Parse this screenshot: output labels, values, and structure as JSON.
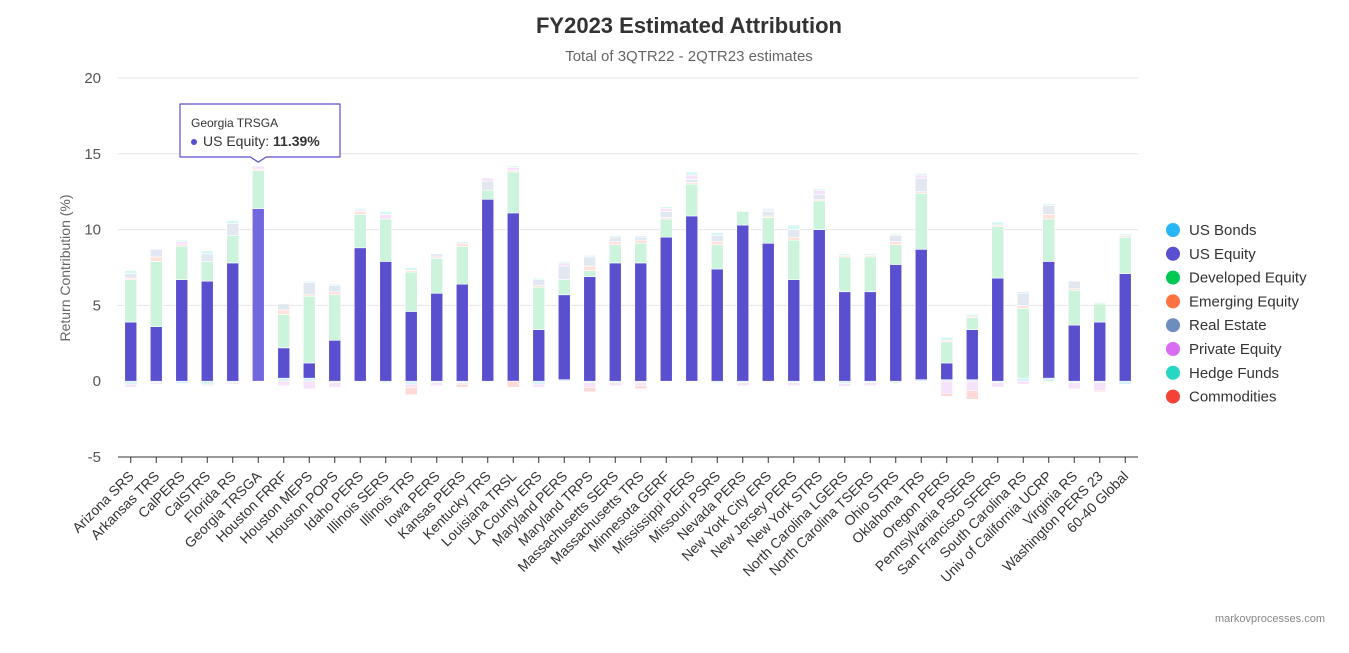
{
  "chart_data": {
    "type": "bar",
    "stacked": true,
    "title": "FY2023 Estimated Attribution",
    "subtitle": "Total of 3QTR22 - 2QTR23 estimates",
    "ylabel": "Return Contribution (%)",
    "xlabel": "",
    "ylim": [
      -5,
      20
    ],
    "yticks": [
      -5,
      0,
      5,
      10,
      15,
      20
    ],
    "grid": true,
    "legend_position": "right",
    "credit": "markovprocesses.com",
    "categories": [
      "Arizona SRS",
      "Arkansas TRS",
      "CalPERS",
      "CalSTRS",
      "Florida RS",
      "Georgia TRSGA",
      "Houston FRRF",
      "Houston MEPS",
      "Houston POPS",
      "Idaho PERS",
      "Illinois SERS",
      "Illinois TRS",
      "Iowa PERS",
      "Kansas PERS",
      "Kentucky TRS",
      "Louisiana TRSL",
      "LA County ERS",
      "Maryland PERS",
      "Maryland TRPS",
      "Massachusetts SERS",
      "Massachusetts TRS",
      "Minnesota GERF",
      "Mississippi PERS",
      "Missouri PSRS",
      "Nevada PERS",
      "New York City ERS",
      "New Jersey PERS",
      "New York STRS",
      "North Carolina LGERS",
      "North Carolina TSERS",
      "Ohio STRS",
      "Oklahoma TRS",
      "Oregon PERS",
      "Pennsylvania PSERS",
      "San Francisco SFERS",
      "South Carolina RS",
      "Univ of California UCRP",
      "Virginia RS",
      "Washington PERS 23",
      "60-40 Global"
    ],
    "series": [
      {
        "name": "US Bonds",
        "color": "#29b6f6",
        "values": [
          -0.2,
          -0.1,
          -0.15,
          -0.2,
          -0.1,
          0,
          0.2,
          0.2,
          -0.1,
          0,
          -0.1,
          -0.2,
          -0.1,
          -0.1,
          0,
          0,
          -0.2,
          0.1,
          -0.1,
          -0.1,
          -0.1,
          0,
          0,
          -0.1,
          -0.1,
          0,
          -0.1,
          -0.1,
          -0.15,
          -0.1,
          -0.1,
          0.1,
          0.1,
          0.1,
          -0.1,
          0.2,
          0.2,
          -0.1,
          -0.1,
          -0.2
        ]
      },
      {
        "name": "US Equity",
        "color": "#5a4fcf",
        "values": [
          3.9,
          3.6,
          6.7,
          6.6,
          7.8,
          11.39,
          2.0,
          1.0,
          2.7,
          8.8,
          7.9,
          4.6,
          5.8,
          6.4,
          12.0,
          11.1,
          3.4,
          5.6,
          6.9,
          7.8,
          7.8,
          9.5,
          10.9,
          7.4,
          10.3,
          9.1,
          6.7,
          10.0,
          5.9,
          5.9,
          7.7,
          8.6,
          1.1,
          3.3,
          6.8,
          0,
          7.7,
          3.7,
          3.9,
          7.1
        ]
      },
      {
        "name": "Developed Equity",
        "color": "#00c853",
        "values": [
          2.8,
          4.3,
          2.2,
          1.3,
          1.8,
          2.5,
          2.2,
          4.4,
          3.0,
          2.2,
          2.8,
          2.6,
          2.3,
          2.5,
          0.6,
          2.7,
          2.8,
          1.0,
          0.4,
          1.2,
          1.3,
          1.2,
          2.1,
          1.6,
          0.9,
          1.7,
          2.6,
          1.9,
          2.3,
          2.3,
          1.3,
          3.7,
          1.4,
          0.8,
          3.4,
          4.6,
          2.8,
          2.3,
          1.2,
          2.4
        ]
      },
      {
        "name": "Emerging Equity",
        "color": "#ff7043",
        "values": [
          0.1,
          0.3,
          0.1,
          0,
          0,
          0.1,
          0.3,
          0.1,
          0.2,
          0.2,
          0,
          0.1,
          0.1,
          0.2,
          0,
          0.1,
          0.1,
          0,
          0.3,
          0.2,
          0.2,
          0.1,
          0.1,
          0.2,
          0,
          0.1,
          0.2,
          0.1,
          0.1,
          0.1,
          0.2,
          0.1,
          0.1,
          0.1,
          0.1,
          0.2,
          0.3,
          0.1,
          0,
          0.1
        ]
      },
      {
        "name": "Real Estate",
        "color": "#6c8ebf",
        "values": [
          0.3,
          0.5,
          0,
          0.5,
          0.8,
          0,
          0.4,
          0.8,
          0.4,
          0,
          0,
          0,
          0.2,
          0,
          0.6,
          0,
          0.4,
          0.9,
          0.6,
          0.3,
          0.2,
          0.4,
          0.2,
          0.4,
          0,
          0.3,
          0.5,
          0.3,
          0,
          0,
          0.4,
          0.9,
          0,
          0,
          0,
          0.8,
          0.6,
          0.5,
          0,
          0
        ]
      },
      {
        "name": "Private Equity",
        "color": "#d86df2",
        "values": [
          -0.2,
          -0.1,
          0.2,
          -0.1,
          -0.1,
          0.2,
          -0.3,
          -0.5,
          -0.3,
          0.1,
          0.3,
          -0.2,
          -0.2,
          -0.1,
          0.2,
          0.2,
          -0.2,
          0.2,
          -0.3,
          -0.2,
          -0.2,
          0.2,
          0.3,
          0,
          -0.2,
          0.1,
          -0.2,
          0.3,
          -0.2,
          -0.2,
          0,
          0.2,
          -0.8,
          -0.6,
          -0.3,
          -0.2,
          0,
          -0.4,
          -0.5,
          0
        ]
      },
      {
        "name": "Hedge Funds",
        "color": "#26d7c4",
        "values": [
          0.2,
          0,
          0.1,
          0.2,
          0.2,
          0,
          0,
          0.1,
          0.1,
          0.1,
          0.2,
          0.2,
          0,
          0.1,
          0,
          0.1,
          0.1,
          0.1,
          0.1,
          0.1,
          0.1,
          0.1,
          0.2,
          0.2,
          0,
          0.1,
          0.3,
          0.1,
          0.1,
          0.1,
          0.1,
          0.1,
          0.2,
          0.1,
          0.2,
          0.1,
          0.1,
          0,
          0.1,
          0.1
        ]
      },
      {
        "name": "Commodities",
        "color": "#f44336",
        "values": [
          0,
          0,
          0,
          0,
          0,
          0,
          0,
          0,
          0,
          0,
          0,
          -0.5,
          0,
          -0.2,
          0,
          -0.4,
          0,
          0,
          -0.3,
          0,
          -0.2,
          0,
          0,
          0,
          0,
          0,
          0,
          0,
          0,
          0,
          0,
          0,
          -0.2,
          -0.6,
          0,
          0,
          0,
          0,
          -0.1,
          0
        ]
      }
    ],
    "tooltip": {
      "category": "Georgia TRSGA",
      "series": "US Equity",
      "label": "US Equity: ",
      "value": "11.39%"
    }
  }
}
